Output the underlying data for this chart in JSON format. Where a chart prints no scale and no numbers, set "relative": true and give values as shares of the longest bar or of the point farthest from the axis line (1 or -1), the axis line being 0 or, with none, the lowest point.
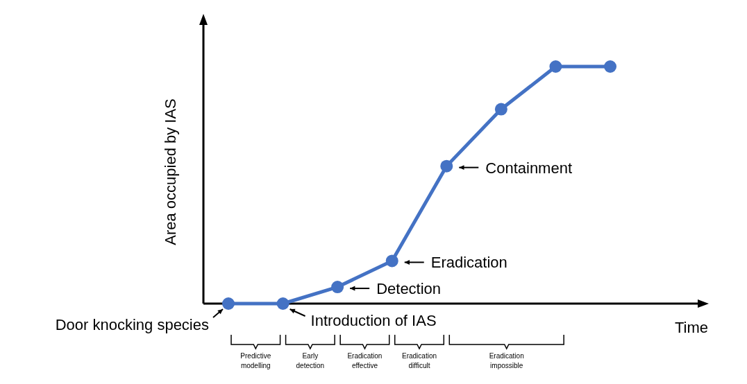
{
  "chart_data": {
    "type": "line",
    "relative": true,
    "xlabel": "Time",
    "ylabel": "Area occupied by IAS",
    "categories": [
      null,
      null,
      null,
      null,
      null,
      null,
      null,
      null
    ],
    "series": [
      {
        "color": "#4472c4",
        "values": [
          0,
          0,
          0.07,
          0.18,
          0.58,
          0.82,
          1,
          1
        ]
      }
    ],
    "marker": "circle",
    "line_style": "solid",
    "annotations": [
      "Door knocking species",
      "Introduction of IAS",
      "Detection",
      "Eradication",
      "Containment",
      "Predictive modelling",
      "Early detection",
      "Eradication effective",
      "Eradication difficult",
      "Eradication impossible"
    ]
  }
}
